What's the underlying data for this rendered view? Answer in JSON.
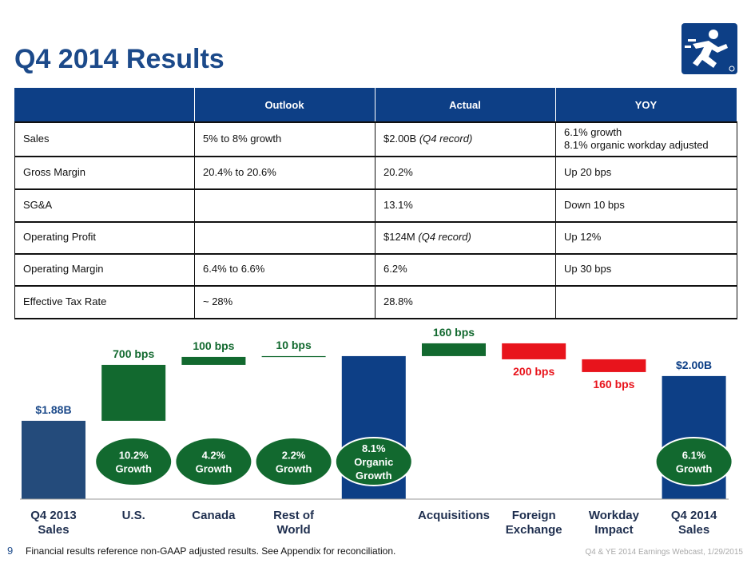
{
  "header": {
    "title": "Q4 2014 Results"
  },
  "table": {
    "headers": [
      "Outlook",
      "Actual",
      "YOY"
    ],
    "rows": [
      [
        "Sales",
        "5% to 8% growth",
        {
          "text": "$2.00B",
          "note": "(Q4 record)"
        },
        [
          "6.1% growth",
          "8.1% organic workday adjusted"
        ]
      ],
      [
        "Gross Margin",
        "20.4% to 20.6%",
        "20.2%",
        "Up 20 bps"
      ],
      [
        "SG&A",
        null,
        "13.1%",
        "Down 10 bps"
      ],
      [
        "Operating Profit",
        null,
        {
          "text": "$124M",
          "note": "(Q4 record)"
        },
        "Up 12%"
      ],
      [
        "Operating Margin",
        "6.4% to 6.6%",
        "6.2%",
        "Up 30 bps"
      ],
      [
        "Effective Tax Rate",
        "~ 28%",
        "28.8%",
        null
      ]
    ]
  },
  "waterfall": {
    "steps": [
      {
        "kind": "total",
        "category": [
          "Q4 2013",
          "Sales"
        ],
        "value": 1.88,
        "value_label": "$1.88B",
        "color": "#244b7b"
      },
      {
        "kind": "delta",
        "category": [
          "U.S."
        ],
        "value": 700,
        "value_label": "700 bps",
        "color": "#12692f",
        "bubble": [
          "10.2%",
          "Growth"
        ]
      },
      {
        "kind": "delta",
        "category": [
          "Canada"
        ],
        "value": 100,
        "value_label": "100 bps",
        "color": "#12692f",
        "bubble": [
          "4.2%",
          "Growth"
        ]
      },
      {
        "kind": "delta",
        "category": [
          "Rest of",
          "World"
        ],
        "value": 10,
        "value_label": "10 bps",
        "color": "#12692f",
        "bubble": [
          "2.2%",
          "Growth"
        ]
      },
      {
        "kind": "subtotal",
        "color": "#0d3f86",
        "bubble": [
          "8.1%",
          "Organic",
          "Growth"
        ]
      },
      {
        "kind": "delta",
        "category": [
          "Acquisitions"
        ],
        "value": 160,
        "value_label": "160 bps",
        "color": "#12692f"
      },
      {
        "kind": "delta",
        "category": [
          "Foreign",
          "Exchange"
        ],
        "value": -200,
        "value_label": "200 bps",
        "color": "#e8141c"
      },
      {
        "kind": "delta",
        "category": [
          "Workday",
          "Impact"
        ],
        "value": -160,
        "value_label": "160 bps",
        "color": "#e8141c"
      },
      {
        "kind": "total",
        "category": [
          "Q4 2014",
          "Sales"
        ],
        "value": 2.0,
        "value_label": "$2.00B",
        "color": "#0d3f86",
        "bubble": [
          "6.1%",
          "Growth"
        ]
      }
    ]
  },
  "footer": {
    "page": "9",
    "note": "Financial results reference non-GAAP adjusted results.  See Appendix for reconciliation.",
    "source": "Q4 & YE 2014 Earnings Webcast, 1/29/2015"
  }
}
